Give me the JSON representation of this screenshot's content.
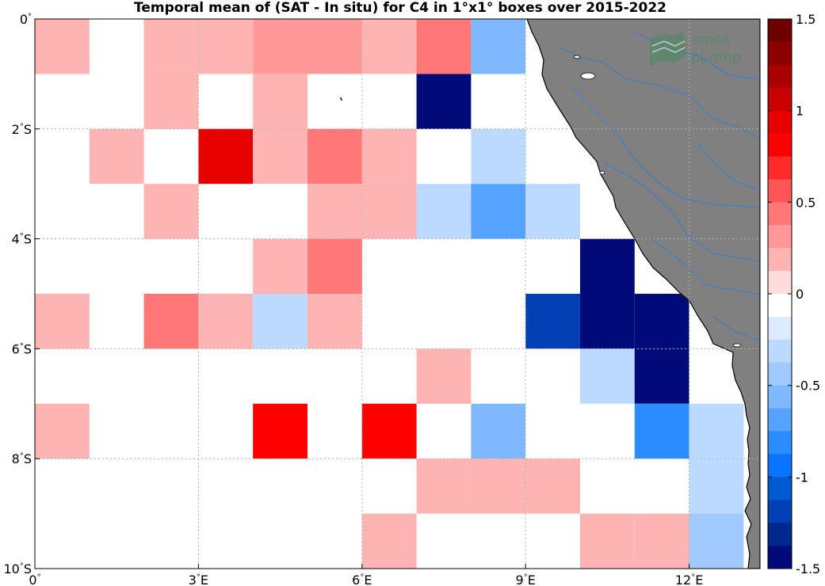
{
  "title": "Temporal mean of (SAT - In situ) for C4 in 1°x1° boxes over 2015-2022",
  "logo": {
    "line1": "smos",
    "line2": "pi-mep"
  },
  "colors": {
    "land": "#808080",
    "river": "#3c7fc4",
    "grid": "#b0b0b0"
  },
  "chart_data": {
    "type": "heatmap",
    "title": "Temporal mean of (SAT - In situ) for C4 in 1°x1° boxes over 2015-2022",
    "x_range_lon": [
      0,
      13.3
    ],
    "y_range_lat": [
      -10,
      0
    ],
    "x_ticks": [
      {
        "value": 0,
        "num": "0",
        "suf": ""
      },
      {
        "value": 3,
        "num": "3",
        "suf": "E"
      },
      {
        "value": 6,
        "num": "6",
        "suf": "E"
      },
      {
        "value": 9,
        "num": "9",
        "suf": "E"
      },
      {
        "value": 12,
        "num": "12",
        "suf": "E"
      }
    ],
    "y_ticks": [
      {
        "value": 0,
        "num": "0",
        "suf": ""
      },
      {
        "value": -2,
        "num": "2",
        "suf": "S"
      },
      {
        "value": -4,
        "num": "4",
        "suf": "S"
      },
      {
        "value": -6,
        "num": "6",
        "suf": "S"
      },
      {
        "value": -8,
        "num": "8",
        "suf": "S"
      },
      {
        "value": -10,
        "num": "10",
        "suf": "S"
      }
    ],
    "grid": true,
    "colorbar": {
      "range": [
        -1.5,
        1.5
      ],
      "levels": 24,
      "ticks": [
        "1.5",
        "1",
        "0.5",
        "0",
        "-0.5",
        "-1",
        "-1.5"
      ],
      "tick_values": [
        1.5,
        1,
        0.5,
        0,
        -0.5,
        -1,
        -1.5
      ],
      "colors_top_to_bottom": [
        "#6e0000",
        "#8c0000",
        "#aa0000",
        "#c80000",
        "#e60000",
        "#ff0000",
        "#ff2a2a",
        "#ff5555",
        "#ff7777",
        "#ff9999",
        "#ffb4b4",
        "#ffdcdc",
        "#ffffff",
        "#dcebff",
        "#bcdaff",
        "#a0caff",
        "#80b8ff",
        "#55a2ff",
        "#2a8cff",
        "#0a73ff",
        "#005ad2",
        "#0040b4",
        "#00288c",
        "#000a78"
      ]
    },
    "cells": [
      {
        "lon": 0,
        "lat": 0,
        "value": 0.15
      },
      {
        "lon": 2,
        "lat": 0,
        "value": 0.15
      },
      {
        "lon": 3,
        "lat": 0,
        "value": 0.15
      },
      {
        "lon": 4,
        "lat": 0,
        "value": 0.35
      },
      {
        "lon": 5,
        "lat": 0,
        "value": 0.35
      },
      {
        "lon": 6,
        "lat": 0,
        "value": 0.15
      },
      {
        "lon": 7,
        "lat": 0,
        "value": 0.4
      },
      {
        "lon": 8,
        "lat": 0,
        "value": -0.5
      },
      {
        "lon": 2,
        "lat": -1,
        "value": 0.25
      },
      {
        "lon": 4,
        "lat": -1,
        "value": 0.15
      },
      {
        "lon": 6,
        "lat": -1,
        "value": -0.1
      },
      {
        "lon": 7,
        "lat": -1,
        "value": -1.5
      },
      {
        "lon": 1,
        "lat": -2,
        "value": 0.15
      },
      {
        "lon": 3,
        "lat": -2,
        "value": 1.0
      },
      {
        "lon": 4,
        "lat": -2,
        "value": 0.25
      },
      {
        "lon": 5,
        "lat": -2,
        "value": 0.5
      },
      {
        "lon": 6,
        "lat": -2,
        "value": 0.25
      },
      {
        "lon": 8,
        "lat": -2,
        "value": -0.25
      },
      {
        "lon": 2,
        "lat": -3,
        "value": 0.25
      },
      {
        "lon": 5,
        "lat": -3,
        "value": 0.15
      },
      {
        "lon": 6,
        "lat": -3,
        "value": 0.15
      },
      {
        "lon": 7,
        "lat": -3,
        "value": -0.25
      },
      {
        "lon": 8,
        "lat": -3,
        "value": -0.7
      },
      {
        "lon": 9,
        "lat": -3,
        "value": -0.25
      },
      {
        "lon": 4,
        "lat": -4,
        "value": 0.15
      },
      {
        "lon": 5,
        "lat": -4,
        "value": 0.5
      },
      {
        "lon": 7,
        "lat": -4,
        "value": -0.1
      },
      {
        "lon": 10,
        "lat": -4,
        "value": -1.5
      },
      {
        "lon": 0,
        "lat": -5,
        "value": 0.15
      },
      {
        "lon": 2,
        "lat": -5,
        "value": 0.4
      },
      {
        "lon": 3,
        "lat": -5,
        "value": 0.15
      },
      {
        "lon": 4,
        "lat": -5,
        "value": -0.25
      },
      {
        "lon": 5,
        "lat": -5,
        "value": 0.15
      },
      {
        "lon": 8,
        "lat": -5,
        "value": -0.1
      },
      {
        "lon": 9,
        "lat": -5,
        "value": -1.15
      },
      {
        "lon": 10,
        "lat": -5,
        "value": -1.5
      },
      {
        "lon": 11,
        "lat": -5,
        "value": -1.5
      },
      {
        "lon": 1,
        "lat": -6,
        "value": -0.1
      },
      {
        "lon": 4,
        "lat": -6,
        "value": -0.1
      },
      {
        "lon": 7,
        "lat": -6,
        "value": 0.15
      },
      {
        "lon": 9,
        "lat": -6,
        "value": -0.1
      },
      {
        "lon": 10,
        "lat": -6,
        "value": -0.3
      },
      {
        "lon": 11,
        "lat": -6,
        "value": -1.5
      },
      {
        "lon": 0,
        "lat": -7,
        "value": 0.15
      },
      {
        "lon": 2,
        "lat": -7,
        "value": -0.1
      },
      {
        "lon": 3,
        "lat": -7,
        "value": -0.1
      },
      {
        "lon": 4,
        "lat": -7,
        "value": 0.85
      },
      {
        "lon": 6,
        "lat": -7,
        "value": 0.85
      },
      {
        "lon": 8,
        "lat": -7,
        "value": -0.5
      },
      {
        "lon": 9,
        "lat": -7,
        "value": -0.1
      },
      {
        "lon": 11,
        "lat": -7,
        "value": -0.8
      },
      {
        "lon": 12,
        "lat": -7,
        "value": -0.25
      },
      {
        "lon": 1,
        "lat": -8,
        "value": -0.1
      },
      {
        "lon": 6,
        "lat": -8,
        "value": -0.1
      },
      {
        "lon": 7,
        "lat": -8,
        "value": 0.25
      },
      {
        "lon": 8,
        "lat": -8,
        "value": 0.15
      },
      {
        "lon": 9,
        "lat": -8,
        "value": 0.15
      },
      {
        "lon": 12,
        "lat": -8,
        "value": -0.25
      },
      {
        "lon": 0,
        "lat": -9,
        "value": -0.1
      },
      {
        "lon": 6,
        "lat": -9,
        "value": 0.15
      },
      {
        "lon": 10,
        "lat": -9,
        "value": 0.15
      },
      {
        "lon": 11,
        "lat": -9,
        "value": 0.25
      },
      {
        "lon": 12,
        "lat": -9,
        "value": -0.4
      }
    ]
  }
}
